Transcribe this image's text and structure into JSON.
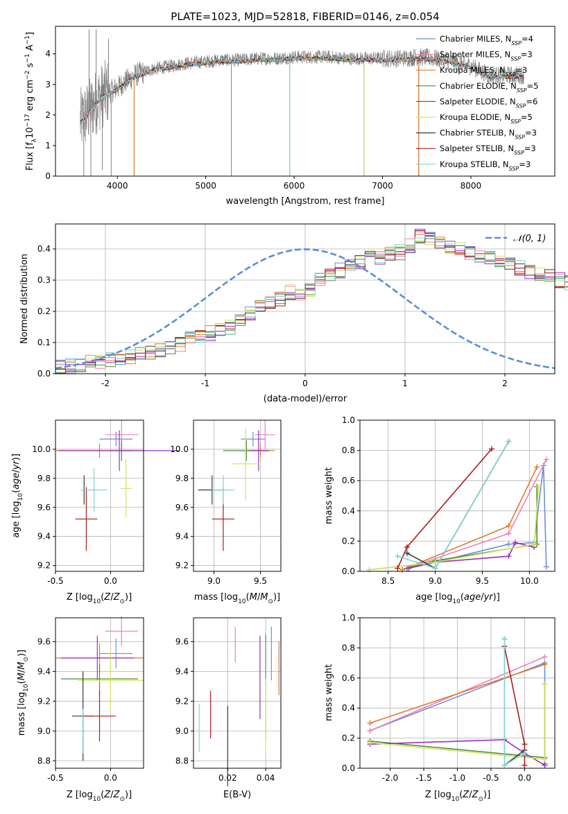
{
  "title": "PLATE=1023, MJD=52818, FIBERID=0146, z=0.054",
  "colors": {
    "data": "#808080",
    "grid": "#b0b0b0",
    "models": [
      "#6a8edb",
      "#f07eb8",
      "#e07a2a",
      "#4a8f3a",
      "#9b2ec0",
      "#d5e35a",
      "#3a3a3a",
      "#b01a1a",
      "#7fd6d6"
    ]
  },
  "model_labels": [
    {
      "main": "Chabrier MILES, N",
      "sub": "SSP",
      "tail": "=4"
    },
    {
      "main": "Salpeter MILES, N",
      "sub": "SSP",
      "tail": "=3"
    },
    {
      "main": "Kroupa MILES, N",
      "sub": "SSP",
      "tail": "=3"
    },
    {
      "main": "Chabrier ELODIE, N",
      "sub": "SSP",
      "tail": "=5"
    },
    {
      "main": "Salpeter ELODIE, N",
      "sub": "SSP",
      "tail": "=6"
    },
    {
      "main": "Kroupa ELODIE, N",
      "sub": "SSP",
      "tail": "=5"
    },
    {
      "main": "Chabrier STELIB, N",
      "sub": "SSP",
      "tail": "=3"
    },
    {
      "main": "Salpeter STELIB, N",
      "sub": "SSP",
      "tail": "=3"
    },
    {
      "main": "Kroupa STELIB, N",
      "sub": "SSP",
      "tail": "=3"
    }
  ],
  "chart_data": [
    {
      "id": "spectrum",
      "type": "line",
      "xlabel": "wavelength [Angstrom, rest frame]",
      "ylabel": "Flux [f_λ 10^-17 erg cm^-2 s^-1 A^-1]",
      "xlim": [
        3300,
        8950
      ],
      "ylim": [
        0,
        4.9
      ],
      "xticks": [
        4000,
        5000,
        6000,
        7000,
        8000
      ],
      "yticks": [
        0,
        1,
        2,
        3,
        4
      ],
      "continuum": [
        [
          3580,
          1.8
        ],
        [
          3650,
          2.0
        ],
        [
          3750,
          2.4
        ],
        [
          3850,
          2.7
        ],
        [
          3950,
          2.8
        ],
        [
          4050,
          3.0
        ],
        [
          4200,
          3.3
        ],
        [
          4400,
          3.5
        ],
        [
          4600,
          3.6
        ],
        [
          4800,
          3.7
        ],
        [
          5000,
          3.75
        ],
        [
          5200,
          3.8
        ],
        [
          5400,
          3.8
        ],
        [
          5600,
          3.85
        ],
        [
          5800,
          3.85
        ],
        [
          6000,
          3.9
        ],
        [
          6200,
          3.9
        ],
        [
          6400,
          3.9
        ],
        [
          6600,
          3.85
        ],
        [
          6800,
          3.85
        ],
        [
          7000,
          3.85
        ],
        [
          7200,
          3.85
        ],
        [
          7400,
          3.9
        ],
        [
          7600,
          3.85
        ],
        [
          7800,
          3.75
        ],
        [
          8000,
          3.6
        ],
        [
          8200,
          3.3
        ],
        [
          8400,
          3.3
        ],
        [
          8600,
          3.3
        ]
      ],
      "spikes": [
        [
          3620,
          0.0
        ],
        [
          3680,
          4.8
        ],
        [
          3700,
          0.0
        ],
        [
          3760,
          4.8
        ],
        [
          3830,
          0.2
        ],
        [
          3900,
          4.5
        ],
        [
          3930,
          0.0
        ],
        [
          5290,
          0.0
        ],
        [
          5950,
          0.0
        ],
        [
          6790,
          0.0
        ],
        [
          7410,
          0.0
        ],
        [
          4190,
          0.0
        ]
      ]
    },
    {
      "id": "residuals",
      "type": "histogram",
      "xlabel": "(data-model)/error",
      "ylabel": "Normed distribution",
      "xlim": [
        -2.5,
        2.5
      ],
      "ylim": [
        0,
        0.48
      ],
      "xticks": [
        -2,
        -1,
        0,
        1,
        2
      ],
      "yticks": [
        0.0,
        0.1,
        0.2,
        0.3,
        0.4
      ],
      "legend": "𝒩(0, 1)",
      "bin_width": 0.1,
      "bin_start": -2.5,
      "base": [
        0.025,
        0.025,
        0.03,
        0.035,
        0.04,
        0.045,
        0.05,
        0.055,
        0.06,
        0.065,
        0.075,
        0.085,
        0.095,
        0.11,
        0.12,
        0.13,
        0.14,
        0.15,
        0.17,
        0.19,
        0.22,
        0.23,
        0.24,
        0.26,
        0.25,
        0.27,
        0.3,
        0.32,
        0.33,
        0.35,
        0.36,
        0.38,
        0.37,
        0.38,
        0.39,
        0.41,
        0.44,
        0.43,
        0.42,
        0.41,
        0.4,
        0.39,
        0.38,
        0.37,
        0.36,
        0.35,
        0.34,
        0.33,
        0.32,
        0.31,
        0.3,
        0.29,
        0.28,
        0.26,
        0.24,
        0.23,
        0.22,
        0.2,
        0.19,
        0.17,
        0.15,
        0.14,
        0.13,
        0.11,
        0.1,
        0.09,
        0.08,
        0.07,
        0.065,
        0.06,
        0.055,
        0.05,
        0.045,
        0.04,
        0.04,
        0.035,
        0.03,
        0.03,
        0.025,
        0.025
      ]
    },
    {
      "id": "age_vs_Z",
      "type": "errorbar",
      "xlabel": "Z [log10(Z/Z⊙)]",
      "ylabel": "age [log10(age/yr)]",
      "xlim": [
        -0.5,
        0.3
      ],
      "ylim": [
        9.16,
        10.2
      ],
      "xticks": [
        -0.5,
        0.0
      ],
      "yticks": [
        9.2,
        9.4,
        9.6,
        9.8,
        10.0
      ],
      "points": [
        {
          "c": 0,
          "x": 0.05,
          "xe": 0.15,
          "y": 10.07,
          "ye": 0.05
        },
        {
          "c": 1,
          "x": 0.1,
          "xe": 0.15,
          "y": 10.1,
          "ye": 0.1
        },
        {
          "c": 2,
          "x": -0.1,
          "xe": 0.4,
          "y": 9.99,
          "ye": 0.05
        },
        {
          "c": 3,
          "x": 0.1,
          "xe": 0.1,
          "y": 9.99,
          "ye": 0.07
        },
        {
          "c": 4,
          "x": 0.08,
          "xe": 0.55,
          "y": 9.99,
          "ye": 0.14
        },
        {
          "c": 5,
          "x": 0.14,
          "xe": 0.05,
          "y": 9.73,
          "ye": 0.2
        },
        {
          "c": 6,
          "x": -0.24,
          "xe": 0.02,
          "y": 9.72,
          "ye": 0.1
        },
        {
          "c": 7,
          "x": -0.22,
          "xe": 0.1,
          "y": 9.52,
          "ye": 0.22
        },
        {
          "c": 8,
          "x": -0.15,
          "xe": 0.12,
          "y": 9.72,
          "ye": 0.15
        }
      ]
    },
    {
      "id": "age_vs_mass",
      "type": "errorbar",
      "xlabel": "mass [log10(M/M⊙)]",
      "ylabel": "",
      "xlim": [
        8.78,
        9.72
      ],
      "ylim": [
        9.16,
        10.2
      ],
      "xticks": [
        9.0,
        9.5
      ],
      "yticks": [
        9.2,
        9.4,
        9.6,
        9.8,
        10.0
      ],
      "points": [
        {
          "c": 0,
          "x": 9.42,
          "xe": 0.13,
          "y": 10.07,
          "ye": 0.05
        },
        {
          "c": 1,
          "x": 9.55,
          "xe": 0.11,
          "y": 10.1,
          "ye": 0.1
        },
        {
          "c": 2,
          "x": 9.5,
          "xe": 0.15,
          "y": 9.99,
          "ye": 0.05
        },
        {
          "c": 3,
          "x": 9.35,
          "xe": 0.25,
          "y": 9.99,
          "ye": 0.07
        },
        {
          "c": 4,
          "x": 9.48,
          "xe": 0.1,
          "y": 9.99,
          "ye": 0.14
        },
        {
          "c": 5,
          "x": 9.34,
          "xe": 0.15,
          "y": 9.9,
          "ye": 0.25
        },
        {
          "c": 6,
          "x": 8.98,
          "xe": 0.15,
          "y": 9.72,
          "ye": 0.1
        },
        {
          "c": 7,
          "x": 9.1,
          "xe": 0.12,
          "y": 9.52,
          "ye": 0.22
        },
        {
          "c": 8,
          "x": 9.1,
          "xe": 0.12,
          "y": 9.72,
          "ye": 0.1
        }
      ]
    },
    {
      "id": "weight_vs_age",
      "type": "line",
      "xlabel": "age [log10(age/yr)]",
      "ylabel": "mass weight",
      "xlim": [
        8.2,
        10.27
      ],
      "ylim": [
        0,
        1.0
      ],
      "xticks": [
        8.5,
        9.0,
        9.5,
        10.0
      ],
      "yticks": [
        0.0,
        0.2,
        0.4,
        0.6,
        0.8,
        1.0
      ],
      "series": [
        {
          "c": 0,
          "pts": [
            [
              8.3,
              0.01
            ],
            [
              9.0,
              0.06
            ],
            [
              9.78,
              0.18
            ],
            [
              10.05,
              0.19
            ],
            [
              10.15,
              0.7
            ],
            [
              10.18,
              0.03
            ]
          ]
        },
        {
          "c": 1,
          "pts": [
            [
              8.65,
              0.01
            ],
            [
              9.78,
              0.25
            ],
            [
              10.18,
              0.74
            ]
          ]
        },
        {
          "c": 2,
          "pts": [
            [
              8.65,
              0.01
            ],
            [
              9.78,
              0.3
            ],
            [
              10.08,
              0.69
            ]
          ]
        },
        {
          "c": 3,
          "pts": [
            [
              8.7,
              0.02
            ],
            [
              9.0,
              0.07
            ],
            [
              10.08,
              0.18
            ],
            [
              10.08,
              0.56
            ]
          ]
        },
        {
          "c": 4,
          "pts": [
            [
              8.72,
              0.02
            ],
            [
              9.0,
              0.06
            ],
            [
              9.78,
              0.1
            ],
            [
              9.85,
              0.19
            ],
            [
              10.05,
              0.16
            ]
          ]
        },
        {
          "c": 5,
          "pts": [
            [
              8.3,
              0.01
            ],
            [
              9.0,
              0.06
            ],
            [
              10.05,
              0.18
            ],
            [
              10.1,
              0.56
            ]
          ]
        },
        {
          "c": 6,
          "pts": [
            [
              8.7,
              0.12
            ],
            [
              9.0,
              0.02
            ],
            [
              9.78,
              0.86
            ]
          ]
        },
        {
          "c": 7,
          "pts": [
            [
              8.6,
              0.02
            ],
            [
              8.7,
              0.16
            ],
            [
              9.6,
              0.81
            ]
          ]
        },
        {
          "c": 8,
          "pts": [
            [
              8.6,
              0.1
            ],
            [
              9.0,
              0.02
            ],
            [
              9.78,
              0.86
            ]
          ]
        }
      ]
    },
    {
      "id": "mass_vs_Z",
      "type": "errorbar",
      "xlabel": "Z [log10(Z/Z⊙)]",
      "ylabel": "mass [log10(M/M⊙)]",
      "xlim": [
        -0.5,
        0.3
      ],
      "ylim": [
        8.75,
        9.76
      ],
      "xticks": [
        -0.5,
        0.0
      ],
      "yticks": [
        8.8,
        9.0,
        9.2,
        9.4,
        9.6
      ],
      "points": [
        {
          "c": 0,
          "x": 0.05,
          "xe": 0.15,
          "y": 9.52,
          "ye": 0.1
        },
        {
          "c": 1,
          "x": 0.1,
          "xe": 0.15,
          "y": 9.67,
          "ye": 0.1
        },
        {
          "c": 2,
          "x": -0.1,
          "xe": 0.4,
          "y": 9.49,
          "ye": 0.1
        },
        {
          "c": 3,
          "x": -0.1,
          "xe": 0.35,
          "y": 9.35,
          "ye": 0.1
        },
        {
          "c": 4,
          "x": -0.12,
          "xe": 0.33,
          "y": 9.49,
          "ye": 0.15
        },
        {
          "c": 5,
          "x": 0.0,
          "xe": 0.3,
          "y": 9.34,
          "ye": 0.2
        },
        {
          "c": 6,
          "x": -0.25,
          "xe": 0.1,
          "y": 9.1,
          "ye": 0.3
        },
        {
          "c": 7,
          "x": -0.1,
          "xe": 0.15,
          "y": 9.1,
          "ye": 0.17
        },
        {
          "c": 8,
          "x": -0.25,
          "xe": 0.02,
          "y": 9.0,
          "ye": 0.15
        }
      ]
    },
    {
      "id": "mass_vs_ebv",
      "type": "errorbar",
      "xlabel": "E(B-V)",
      "ylabel": "",
      "xlim": [
        0.002,
        0.048
      ],
      "ylim": [
        8.75,
        9.76
      ],
      "xticks": [
        0.02,
        0.04
      ],
      "yticks": [
        8.8,
        9.0,
        9.2,
        9.4,
        9.6
      ],
      "points": [
        {
          "c": 0,
          "x": 0.043,
          "xe": 0,
          "y": 9.52,
          "ye": 0.18
        },
        {
          "c": 1,
          "x": 0.024,
          "xe": 0,
          "y": 9.58,
          "ye": 0.12
        },
        {
          "c": 2,
          "x": 0.047,
          "xe": 0,
          "y": 9.42,
          "ye": 0.18
        },
        {
          "c": 3,
          "x": 0.04,
          "xe": 0,
          "y": 9.3,
          "ye": 0.35
        },
        {
          "c": 4,
          "x": 0.037,
          "xe": 0,
          "y": 9.36,
          "ye": 0.28
        },
        {
          "c": 5,
          "x": 0.04,
          "xe": 0,
          "y": 9.1,
          "ye": 0.25
        },
        {
          "c": 6,
          "x": 0.02,
          "xe": 0,
          "y": 8.9,
          "ye": 0.27
        },
        {
          "c": 7,
          "x": 0.011,
          "xe": 0,
          "y": 9.11,
          "ye": 0.16
        },
        {
          "c": 8,
          "x": 0.005,
          "xe": 0,
          "y": 9.02,
          "ye": 0.16
        }
      ]
    },
    {
      "id": "weight_vs_Z",
      "type": "line",
      "xlabel": "Z [log10(Z/Z⊙)]",
      "ylabel": "mass weight",
      "xlim": [
        -2.45,
        0.45
      ],
      "ylim": [
        0,
        1.0
      ],
      "xticks": [
        -2.0,
        -1.5,
        -1.0,
        -0.5,
        0.0
      ],
      "yticks": [
        0.0,
        0.2,
        0.4,
        0.6,
        0.8,
        1.0
      ],
      "series": [
        {
          "c": 0,
          "pts": [
            [
              -2.3,
              0.25
            ],
            [
              0.3,
              0.7
            ],
            [
              0.3,
              0.03
            ]
          ]
        },
        {
          "c": 1,
          "pts": [
            [
              -2.3,
              0.25
            ],
            [
              0.3,
              0.74
            ]
          ]
        },
        {
          "c": 2,
          "pts": [
            [
              -2.3,
              0.3
            ],
            [
              0.3,
              0.69
            ]
          ]
        },
        {
          "c": 3,
          "pts": [
            [
              -2.3,
              0.18
            ],
            [
              0.3,
              0.07
            ],
            [
              0.3,
              0.56
            ]
          ]
        },
        {
          "c": 4,
          "pts": [
            [
              -2.3,
              0.16
            ],
            [
              -0.3,
              0.19
            ],
            [
              0.0,
              0.1
            ],
            [
              0.3,
              0.02
            ]
          ]
        },
        {
          "c": 5,
          "pts": [
            [
              -2.3,
              0.17
            ],
            [
              0.3,
              0.06
            ],
            [
              0.3,
              0.56
            ]
          ]
        },
        {
          "c": 6,
          "pts": [
            [
              0.0,
              0.12
            ],
            [
              -0.3,
              0.02
            ],
            [
              -0.3,
              0.86
            ]
          ]
        },
        {
          "c": 7,
          "pts": [
            [
              0.0,
              0.02
            ],
            [
              0.0,
              0.16
            ],
            [
              -0.3,
              0.81
            ]
          ]
        },
        {
          "c": 8,
          "pts": [
            [
              0.0,
              0.1
            ],
            [
              -0.3,
              0.02
            ],
            [
              -0.3,
              0.86
            ]
          ]
        }
      ]
    }
  ]
}
